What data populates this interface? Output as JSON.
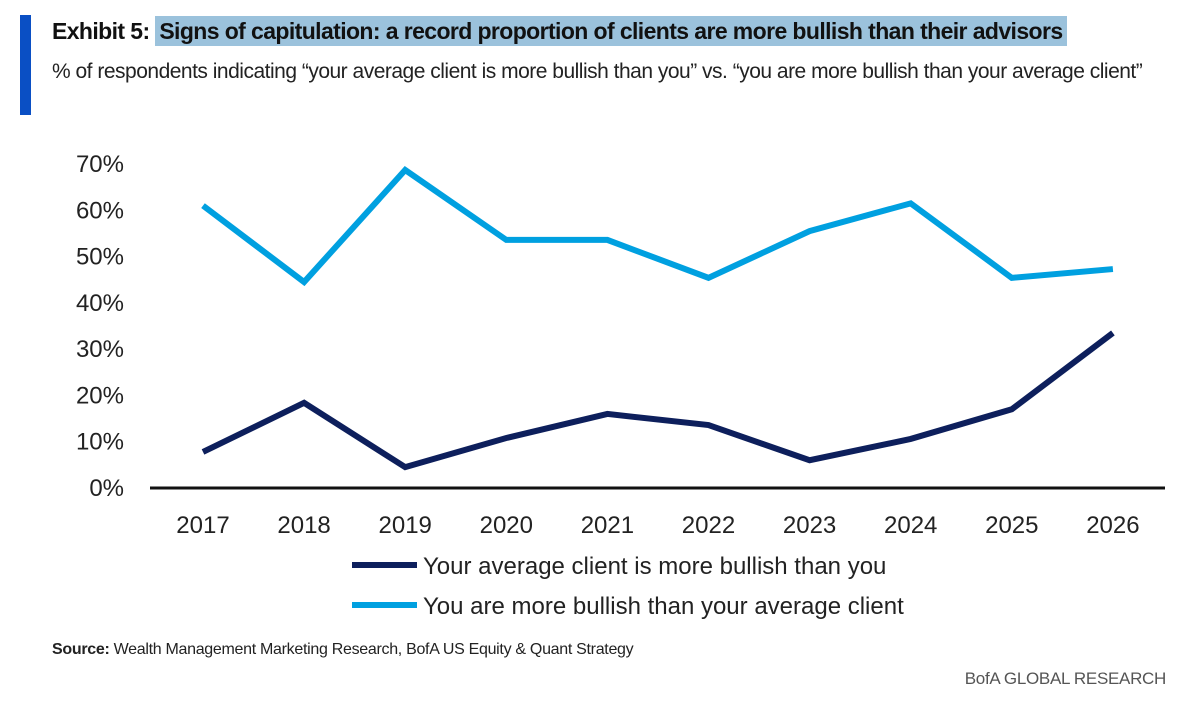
{
  "header": {
    "exhibit_label": "Exhibit 5:",
    "title": "Signs of capitulation: a record  proportion of clients are more bullish than their advisors",
    "subtitle": "% of respondents indicating “your average client is more bullish than you” vs. “you are more bullish than your average client”"
  },
  "chart_data": {
    "type": "line",
    "title": "Signs of capitulation: a record  proportion of clients are more bullish than their advisors",
    "x": [
      "2017",
      "2018",
      "2019",
      "2020",
      "2021",
      "2022",
      "2023",
      "2024",
      "2025",
      "2026"
    ],
    "ylim": [
      0,
      70
    ],
    "yticks": [
      "0%",
      "10%",
      "20%",
      "30%",
      "40%",
      "50%",
      "60%",
      "70%"
    ],
    "grid": false,
    "legend_placement": "bottom",
    "series": [
      {
        "name": "Your average client is more bullish than you",
        "color": "#0d1f5c",
        "values": [
          7.8,
          18.4,
          4.5,
          10.8,
          16,
          13.6,
          6,
          10.6,
          17,
          33.5
        ]
      },
      {
        "name": "You are more bullish than your average client",
        "color": "#00a0e0",
        "values": [
          61,
          44.5,
          68.7,
          53.6,
          53.6,
          45.4,
          55.5,
          61.5,
          45.4,
          47.3
        ]
      }
    ]
  },
  "footer": {
    "source_label": "Source:",
    "source_text": " Wealth Management Marketing Research, BofA US Equity & Quant Strategy",
    "brand": "BofA GLOBAL RESEARCH"
  },
  "colors": {
    "accent_bar": "#0a4fc4",
    "title_highlight": "#9bc2dc"
  }
}
